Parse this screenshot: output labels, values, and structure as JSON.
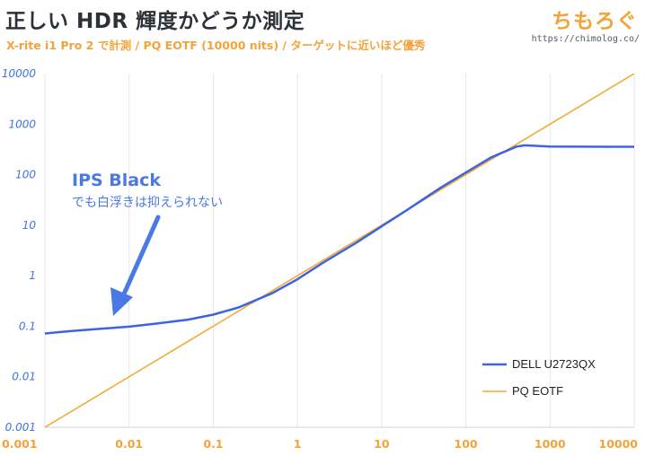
{
  "header": {
    "title": "正しい HDR 輝度かどうか測定",
    "subtitle": "X-rite i1 Pro 2 で計測 / PQ EOTF (10000 nits) / ターゲットに近いほど優秀",
    "brand": "ちもろぐ",
    "brand_url": "https://chimolog.co/"
  },
  "colors": {
    "measured": "#3d63e0",
    "target": "#f5a834",
    "grid": "#e6e6e6",
    "y_tick": "#3d73e0",
    "x_tick": "#f2a33a",
    "annotation": "#4a78e6"
  },
  "chart_data": {
    "type": "line",
    "x_scale": "log",
    "y_scale": "log",
    "xlim": [
      0.001,
      10000
    ],
    "ylim": [
      0.001,
      10000
    ],
    "x_ticks": [
      "0.001",
      "0.01",
      "0.1",
      "1",
      "10",
      "100",
      "1000",
      "10000"
    ],
    "y_ticks": [
      "0.001",
      "0.01",
      "0.1",
      "1",
      "10",
      "100",
      "1000",
      "10000"
    ],
    "grid": "vertical",
    "legend_position": "bottom-right",
    "series": [
      {
        "name": "DELL U2723QX",
        "color": "#3d63e0",
        "points": [
          [
            0.001,
            0.072
          ],
          [
            0.002,
            0.08
          ],
          [
            0.005,
            0.09
          ],
          [
            0.01,
            0.098
          ],
          [
            0.02,
            0.112
          ],
          [
            0.05,
            0.135
          ],
          [
            0.1,
            0.17
          ],
          [
            0.2,
            0.235
          ],
          [
            0.5,
            0.45
          ],
          [
            1,
            0.85
          ],
          [
            2,
            1.8
          ],
          [
            5,
            4.5
          ],
          [
            10,
            9.5
          ],
          [
            20,
            20
          ],
          [
            50,
            55
          ],
          [
            100,
            110
          ],
          [
            200,
            220
          ],
          [
            400,
            360
          ],
          [
            500,
            380
          ],
          [
            1000,
            360
          ],
          [
            2000,
            358
          ],
          [
            5000,
            356
          ],
          [
            10000,
            356
          ]
        ]
      },
      {
        "name": "PQ EOTF",
        "color": "#f5a834",
        "points": [
          [
            0.001,
            0.001
          ],
          [
            10000,
            10000
          ]
        ]
      }
    ],
    "annotations": [
      {
        "title": "IPS Black",
        "text": "でも白浮きは抑えられない",
        "target": [
          0.007,
          0.1
        ]
      }
    ]
  }
}
